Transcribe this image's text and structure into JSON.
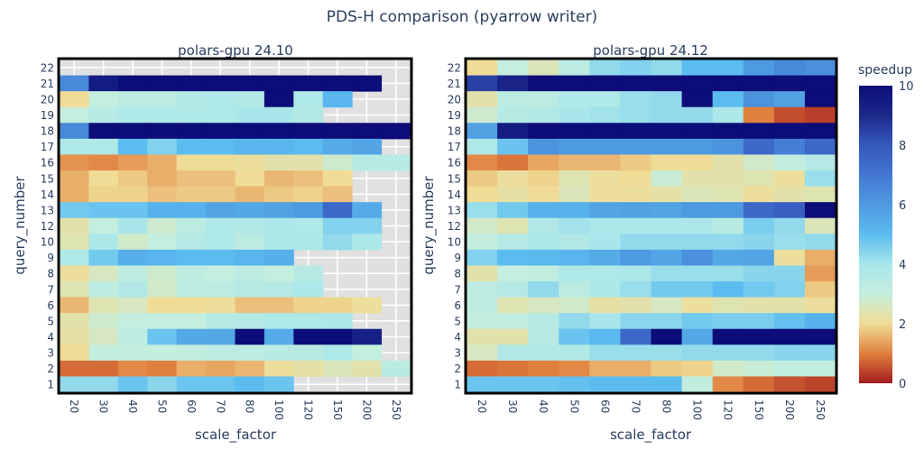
{
  "title": "PDS-H comparison (pyarrow writer)",
  "chart_data": {
    "type": "heatmap",
    "title": "PDS-H comparison (pyarrow writer)",
    "colorbar": {
      "title": "speedup",
      "range": [
        0,
        10
      ],
      "ticks": [
        "0",
        "2",
        "4",
        "6",
        "8",
        "10"
      ]
    },
    "colorscale": [
      "#a31c1e",
      "#e0803e",
      "#f0dc96",
      "#c4eedd",
      "#a9e6ea",
      "#5bbcf0",
      "#4e9ae0",
      "#4278d2",
      "#3558bd",
      "#1c2a8a",
      "#0c0d78"
    ],
    "missing_color": "#e0e0e0",
    "x_categories": [
      "20",
      "30",
      "40",
      "50",
      "60",
      "70",
      "80",
      "100",
      "120",
      "150",
      "200",
      "250"
    ],
    "y_categories": [
      "22",
      "21",
      "20",
      "19",
      "18",
      "17",
      "16",
      "15",
      "14",
      "13",
      "12",
      "10",
      "9",
      "8",
      "7",
      "6",
      "5",
      "4",
      "3",
      "2",
      "1"
    ],
    "xlabel": "scale_factor",
    "ylabel": "query_number",
    "panels": [
      {
        "title": "polars-gpu 24.10",
        "values": [
          [
            null,
            null,
            null,
            null,
            null,
            null,
            null,
            null,
            null,
            null,
            null,
            null
          ],
          [
            6.5,
            9.5,
            10,
            10,
            10,
            10,
            10,
            10,
            10,
            10,
            10,
            null
          ],
          [
            2,
            3,
            3.3,
            3.3,
            3.7,
            3.8,
            3.7,
            10,
            3.8,
            5.2,
            null,
            null
          ],
          [
            3,
            3.5,
            3.8,
            3.8,
            3.8,
            3.8,
            4,
            4,
            3.7,
            null,
            null,
            null
          ],
          [
            6.5,
            10,
            10,
            10,
            10,
            10,
            10,
            10,
            10,
            10,
            10,
            10
          ],
          [
            3.8,
            3.8,
            5,
            4.5,
            5,
            5,
            5.2,
            5.2,
            5,
            5.5,
            5.7,
            null
          ],
          [
            1.2,
            1.1,
            1.3,
            1.5,
            2,
            2,
            2.1,
            2.3,
            2.3,
            2.8,
            3.5,
            3.5
          ],
          [
            1.5,
            2,
            1.8,
            1.5,
            1.7,
            1.7,
            2,
            1.6,
            1.7,
            2,
            null,
            null
          ],
          [
            1.5,
            1.9,
            1.9,
            1.7,
            1.8,
            1.8,
            1.6,
            1.8,
            1.9,
            1.7,
            null,
            null
          ],
          [
            4.7,
            4.8,
            4.8,
            5.3,
            5.3,
            5.7,
            5.6,
            5.8,
            6,
            7.5,
            5.5,
            null
          ],
          [
            2.3,
            3,
            4,
            2.8,
            3.3,
            3.8,
            3.7,
            3.9,
            3.8,
            4.5,
            4.5,
            null
          ],
          [
            2.4,
            3.9,
            2.7,
            3,
            3.6,
            3.8,
            3.3,
            3.9,
            3.9,
            4.3,
            3.9,
            null
          ],
          [
            3.8,
            4.7,
            5.4,
            5.2,
            5,
            5,
            5.2,
            5.4,
            null,
            null,
            null,
            null
          ],
          [
            2.1,
            2.6,
            3.2,
            2.8,
            3.2,
            3,
            3.3,
            3,
            3.5,
            null,
            null,
            null
          ],
          [
            2.4,
            3.2,
            3.7,
            2.7,
            3.3,
            3.3,
            3.5,
            3.6,
            3.9,
            null,
            null,
            null
          ],
          [
            1.6,
            2.4,
            2.6,
            2,
            2,
            2.1,
            1.7,
            1.7,
            1.9,
            1.9,
            2.1,
            null
          ],
          [
            2.3,
            2.8,
            3,
            3,
            3,
            3.5,
            3.6,
            3.8,
            3.8,
            3.9,
            null,
            null
          ],
          [
            2.2,
            2.6,
            3.2,
            4.8,
            5.6,
            5.6,
            10,
            5.5,
            10,
            10,
            9.3,
            null
          ],
          [
            2,
            3,
            3,
            3,
            3.1,
            3.3,
            3.3,
            3.4,
            3.4,
            3.8,
            3,
            null
          ],
          [
            0.8,
            0.8,
            1.1,
            1,
            1.5,
            1.4,
            1.6,
            2.1,
            2.2,
            2.5,
            2.3,
            3.4
          ],
          [
            4.3,
            4.3,
            4.8,
            4.4,
            4.8,
            4.8,
            5,
            4.8,
            null,
            null,
            null,
            null
          ]
        ]
      },
      {
        "title": "polars-gpu 24.12",
        "values": [
          [
            2,
            3,
            2.5,
            3.3,
            4.3,
            4.5,
            4.3,
            5,
            5,
            6,
            6.5,
            6.3
          ],
          [
            8.5,
            9.2,
            10,
            10,
            10,
            10,
            10,
            10,
            10,
            10,
            10,
            10
          ],
          [
            2.3,
            3.3,
            3.3,
            3.8,
            3.8,
            4.2,
            4.3,
            10,
            5,
            6.2,
            5.8,
            10
          ],
          [
            2.8,
            3.5,
            3.7,
            4,
            4.1,
            4.2,
            4.3,
            4.3,
            3.9,
            1,
            0.5,
            0.35
          ],
          [
            5.8,
            9.5,
            10,
            10,
            10,
            10,
            10,
            10,
            10,
            10,
            10,
            10
          ],
          [
            3.8,
            4.8,
            6.2,
            6,
            6,
            6,
            6,
            6,
            6.2,
            7.5,
            6.8,
            7.5
          ],
          [
            1.1,
            0.9,
            1.4,
            1.6,
            1.6,
            1.8,
            2,
            2,
            2.3,
            2.7,
            3.1,
            3.6
          ],
          [
            1.8,
            2.1,
            1.9,
            2.4,
            2.1,
            2,
            2.9,
            2.3,
            2.3,
            2.4,
            2.1,
            4.2
          ],
          [
            2,
            2.2,
            2,
            2.5,
            2.1,
            2.1,
            2.2,
            2.5,
            2.4,
            2.1,
            2.3,
            2.4
          ],
          [
            4.2,
            4.7,
            5.3,
            5.3,
            5.7,
            5.8,
            5.7,
            6,
            6,
            7.5,
            7.8,
            10
          ],
          [
            2.7,
            2.4,
            3.7,
            4.1,
            3.9,
            3.9,
            3.9,
            3.9,
            3.4,
            4.6,
            4.3,
            2.5
          ],
          [
            3.1,
            3.6,
            3.9,
            3.7,
            4,
            4.3,
            4.3,
            4.3,
            4.3,
            4.4,
            4.2,
            4.3
          ],
          [
            4.5,
            5,
            5.1,
            5.2,
            5.5,
            6,
            5.7,
            6.3,
            5.6,
            5.7,
            2.1,
            1.5
          ],
          [
            2.3,
            3,
            3.1,
            3.8,
            3.8,
            3.9,
            4.2,
            4.2,
            4.2,
            4.4,
            4.4,
            1.3
          ],
          [
            3.2,
            3.6,
            4.3,
            3.3,
            3.9,
            4.2,
            4.7,
            4.7,
            5,
            4.7,
            4.5,
            1.8
          ],
          [
            3.2,
            2.4,
            2.6,
            2.7,
            2.2,
            2.3,
            2.6,
            2.1,
            2.4,
            2.3,
            2.3,
            2.1
          ],
          [
            3,
            3.1,
            3.5,
            4.3,
            4,
            4.4,
            4.4,
            4.7,
            4.6,
            4.6,
            4.9,
            5.3
          ],
          [
            2.3,
            2.3,
            3.5,
            4.8,
            5.1,
            7.5,
            10,
            5.6,
            10,
            10,
            10,
            10
          ],
          [
            2.6,
            3.7,
            3.7,
            3.7,
            4.2,
            4.2,
            4.2,
            4.3,
            4.3,
            4.3,
            4.4,
            4.4
          ],
          [
            0.8,
            0.9,
            1,
            1.1,
            1.5,
            1.5,
            1.8,
            1.9,
            2.7,
            2.9,
            3.1,
            3.1
          ],
          [
            4.8,
            4.8,
            4.8,
            4.9,
            5,
            5,
            5,
            3.1,
            1.1,
            0.8,
            0.55,
            0.4
          ]
        ]
      }
    ]
  }
}
